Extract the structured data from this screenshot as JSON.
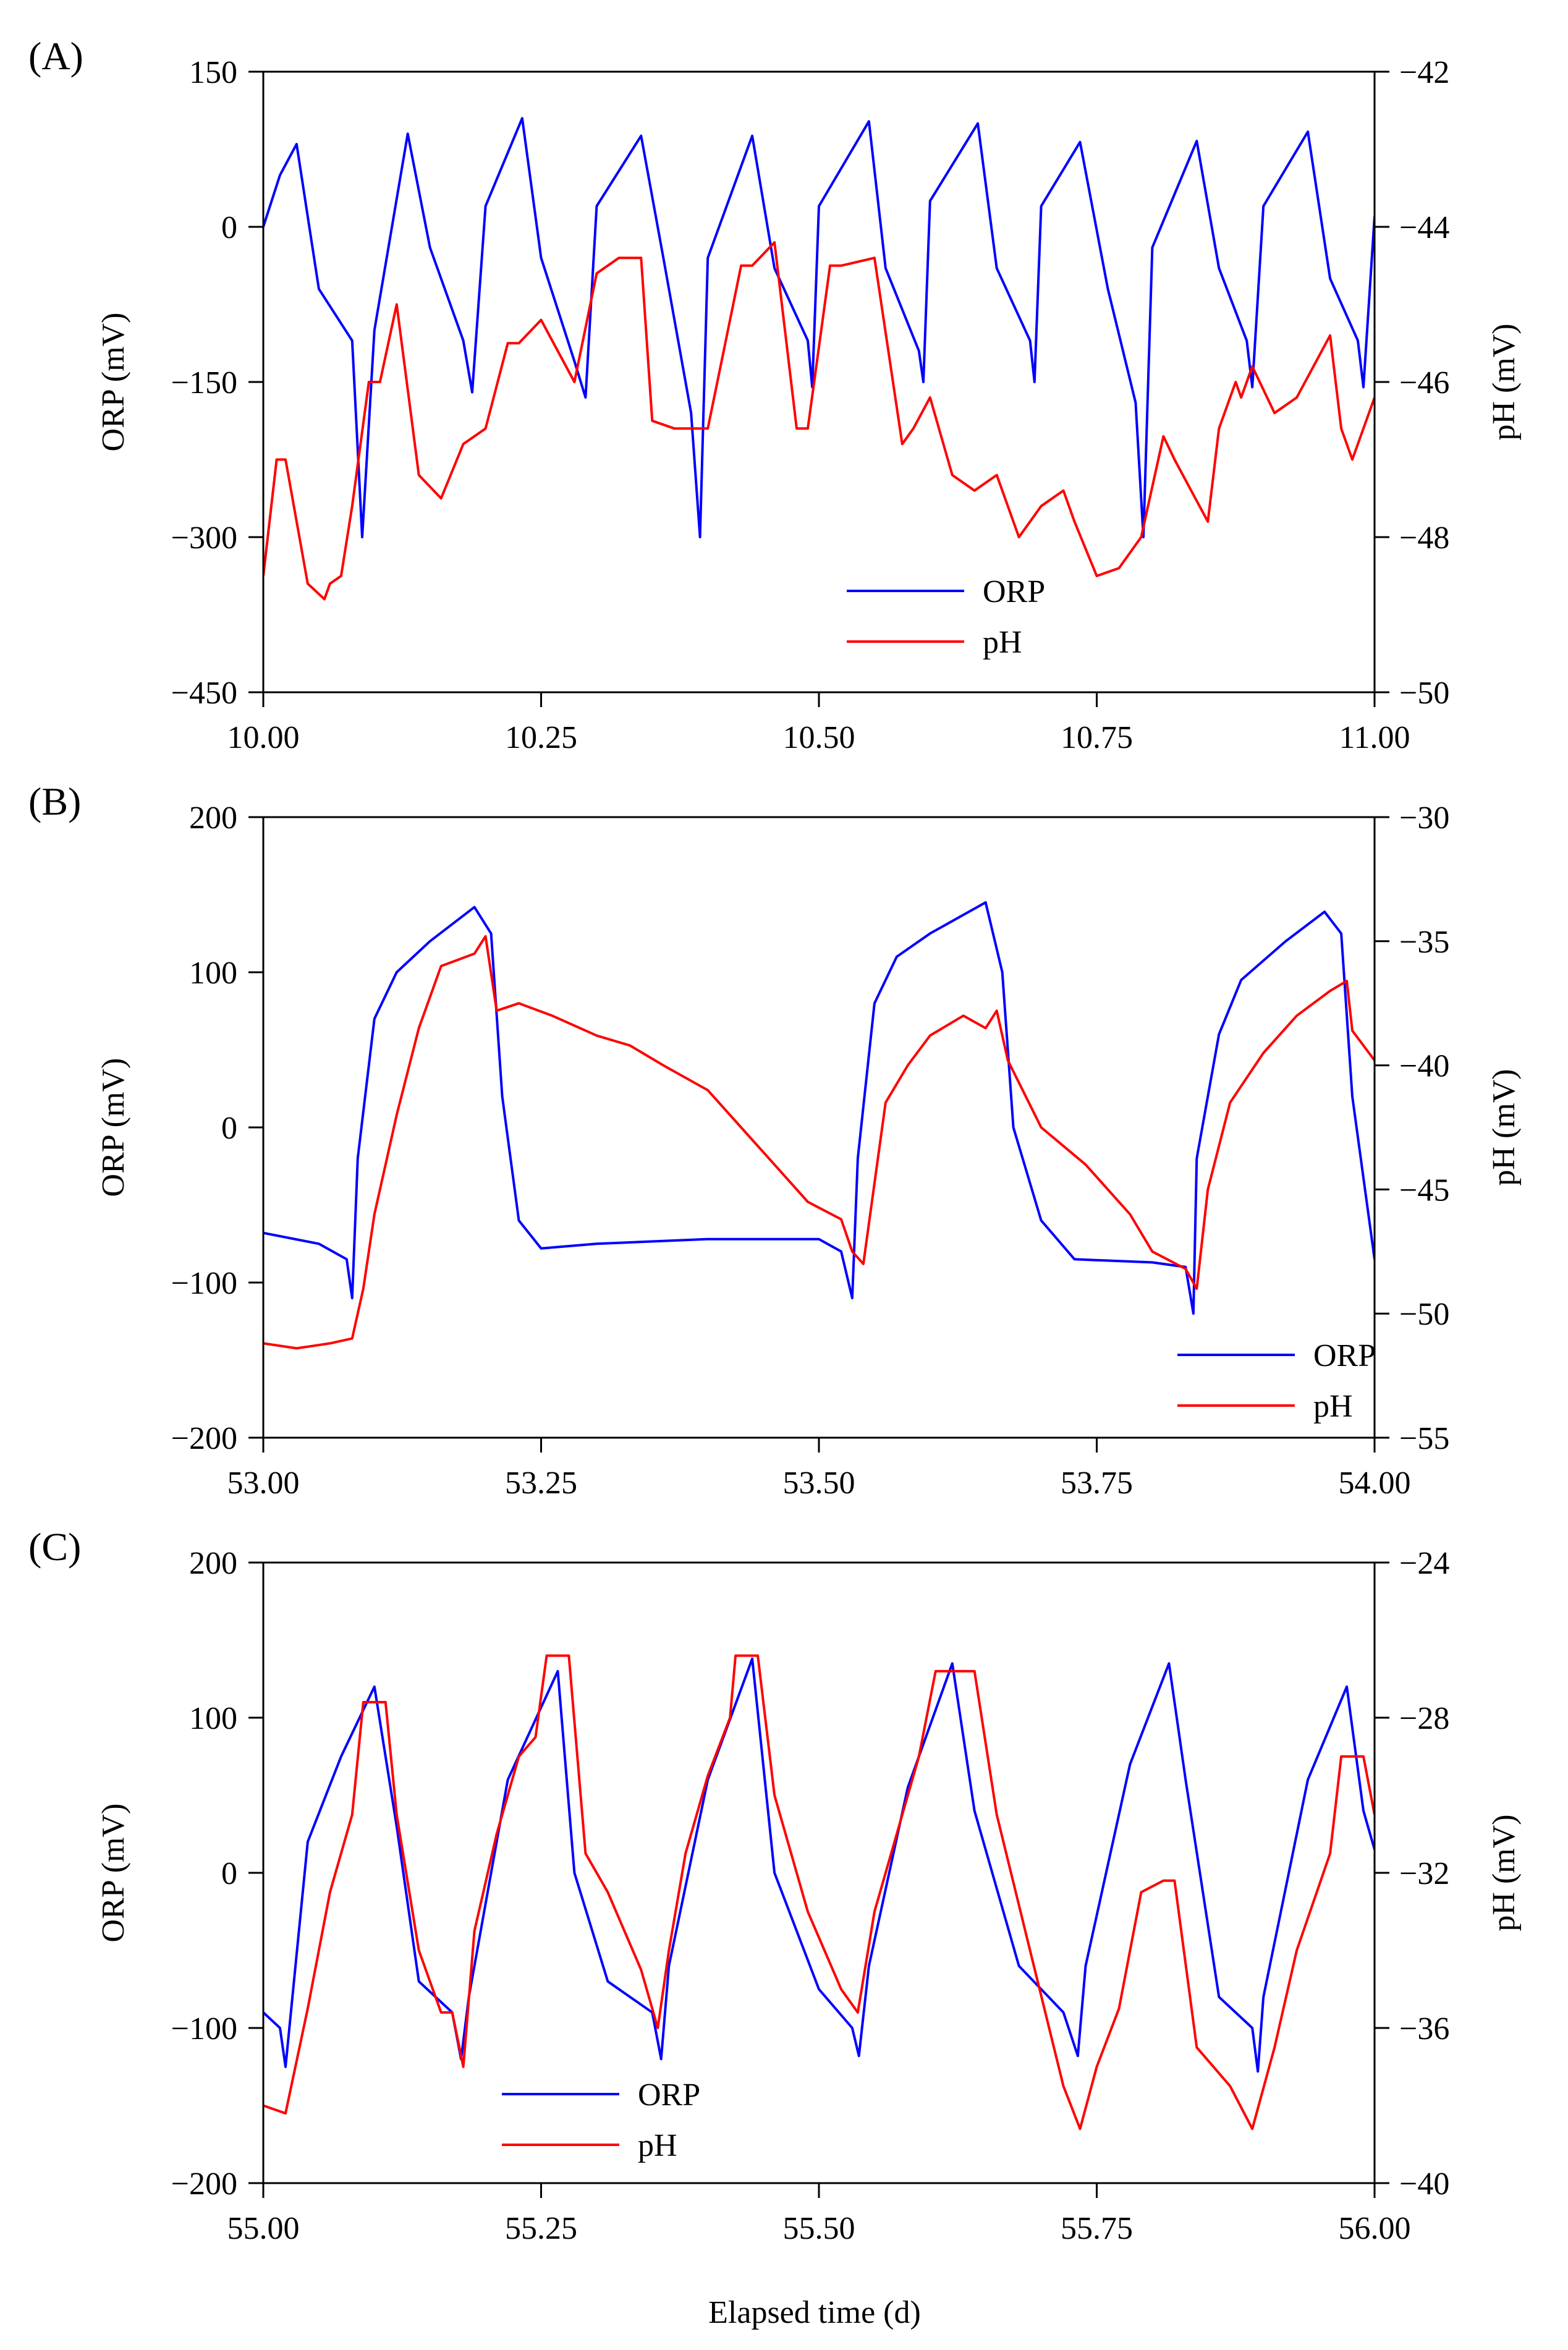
{
  "figure": {
    "x_axis_label": "Elapsed time (d)"
  },
  "legend_labels": {
    "orp": "ORP",
    "ph": "pH"
  },
  "colors": {
    "orp": "#0000ff",
    "ph": "#ff0000",
    "axes": "#000000"
  },
  "chart_data": [
    {
      "type": "line",
      "panel_label": "(A)",
      "xlabel": "",
      "ylabel_left": "ORP (mV)",
      "ylabel_right": "pH (mV)",
      "xlim": [
        10.0,
        11.0
      ],
      "ylim_left": [
        -450,
        150
      ],
      "ylim_right": [
        -50,
        -42
      ],
      "x_ticks": [
        "10.00",
        "10.25",
        "10.50",
        "10.75",
        "11.00"
      ],
      "y_ticks_left": [
        "150",
        "0",
        "−150",
        "−300",
        "−450"
      ],
      "y_ticks_right": [
        "−42",
        "−44",
        "−46",
        "−48",
        "−50"
      ],
      "legend_position": "bottom-center",
      "grid": false,
      "series": [
        {
          "name": "ORP",
          "axis": "left",
          "x": [
            10.0,
            10.015,
            10.03,
            10.05,
            10.08,
            10.089,
            10.1,
            10.13,
            10.15,
            10.18,
            10.188,
            10.2,
            10.233,
            10.25,
            10.28,
            10.29,
            10.3,
            10.34,
            10.36,
            10.385,
            10.393,
            10.4,
            10.44,
            10.46,
            10.49,
            10.494,
            10.5,
            10.545,
            10.56,
            10.59,
            10.594,
            10.6,
            10.643,
            10.66,
            10.69,
            10.694,
            10.7,
            10.735,
            10.76,
            10.785,
            10.792,
            10.8,
            10.84,
            10.86,
            10.885,
            10.89,
            10.9,
            10.94,
            10.96,
            10.985,
            10.99,
            11.0
          ],
          "y": [
            0,
            50,
            80,
            -60,
            -110,
            -300,
            -100,
            90,
            -20,
            -110,
            -160,
            20,
            105,
            -30,
            -130,
            -165,
            20,
            88,
            -30,
            -180,
            -300,
            -30,
            88,
            -40,
            -110,
            -155,
            20,
            102,
            -40,
            -120,
            -150,
            25,
            100,
            -40,
            -110,
            -150,
            20,
            82,
            -60,
            -170,
            -300,
            -20,
            83,
            -40,
            -110,
            -155,
            20,
            92,
            -50,
            -110,
            -155,
            10
          ]
        },
        {
          "name": "pH",
          "axis": "right",
          "x": [
            10.0,
            10.012,
            10.02,
            10.04,
            10.055,
            10.06,
            10.07,
            10.08,
            10.095,
            10.105,
            10.12,
            10.14,
            10.16,
            10.18,
            10.2,
            10.22,
            10.23,
            10.25,
            10.28,
            10.3,
            10.32,
            10.34,
            10.35,
            10.37,
            10.4,
            10.42,
            10.43,
            10.44,
            10.46,
            10.48,
            10.49,
            10.51,
            10.52,
            10.55,
            10.575,
            10.585,
            10.6,
            10.62,
            10.64,
            10.66,
            10.68,
            10.7,
            10.72,
            10.73,
            10.75,
            10.77,
            10.79,
            10.81,
            10.82,
            10.835,
            10.85,
            10.86,
            10.875,
            10.88,
            10.89,
            10.91,
            10.93,
            10.96,
            10.97,
            10.98,
            11.0
          ],
          "y": [
            -48.5,
            -47.0,
            -47.0,
            -48.6,
            -48.8,
            -48.6,
            -48.5,
            -47.6,
            -46.0,
            -46.0,
            -45.0,
            -47.2,
            -47.5,
            -46.8,
            -46.6,
            -45.5,
            -45.5,
            -45.2,
            -46.0,
            -44.6,
            -44.4,
            -44.4,
            -46.5,
            -46.6,
            -46.6,
            -45.2,
            -44.5,
            -44.5,
            -44.2,
            -46.6,
            -46.6,
            -44.5,
            -44.5,
            -44.4,
            -46.8,
            -46.6,
            -46.2,
            -47.2,
            -47.4,
            -47.2,
            -48.0,
            -47.6,
            -47.4,
            -47.8,
            -48.5,
            -48.4,
            -48.0,
            -46.7,
            -47.0,
            -47.4,
            -47.8,
            -46.6,
            -46.0,
            -46.2,
            -45.8,
            -46.4,
            -46.2,
            -45.4,
            -46.6,
            -47.0,
            -46.2
          ]
        }
      ]
    },
    {
      "type": "line",
      "panel_label": "(B)",
      "xlabel": "",
      "ylabel_left": "ORP (mV)",
      "ylabel_right": "pH (mV)",
      "xlim": [
        53.0,
        54.0
      ],
      "ylim_left": [
        -200,
        200
      ],
      "ylim_right": [
        -55,
        -30
      ],
      "x_ticks": [
        "53.00",
        "53.25",
        "53.50",
        "53.75",
        "54.00"
      ],
      "y_ticks_left": [
        "200",
        "100",
        "0",
        "−100",
        "−200"
      ],
      "y_ticks_right": [
        "−30",
        "−35",
        "−40",
        "−45",
        "−50",
        "−55"
      ],
      "legend_position": "bottom-right",
      "grid": false,
      "series": [
        {
          "name": "ORP",
          "axis": "left",
          "x": [
            53.0,
            53.05,
            53.075,
            53.08,
            53.085,
            53.1,
            53.12,
            53.15,
            53.19,
            53.205,
            53.215,
            53.23,
            53.25,
            53.3,
            53.4,
            53.5,
            53.52,
            53.53,
            53.535,
            53.55,
            53.57,
            53.6,
            53.65,
            53.665,
            53.675,
            53.7,
            53.73,
            53.8,
            53.83,
            53.837,
            53.84,
            53.86,
            53.88,
            53.92,
            53.955,
            53.97,
            53.98,
            54.0
          ],
          "y": [
            -68,
            -75,
            -85,
            -110,
            -20,
            70,
            100,
            120,
            142,
            125,
            20,
            -60,
            -78,
            -75,
            -72,
            -72,
            -80,
            -110,
            -20,
            80,
            110,
            125,
            145,
            100,
            0,
            -60,
            -85,
            -87,
            -90,
            -120,
            -20,
            60,
            95,
            120,
            139,
            125,
            20,
            -85
          ]
        },
        {
          "name": "pH",
          "axis": "right",
          "x": [
            53.0,
            53.03,
            53.06,
            53.08,
            53.09,
            53.1,
            53.12,
            53.14,
            53.16,
            53.19,
            53.2,
            53.21,
            53.23,
            53.26,
            53.3,
            53.33,
            53.36,
            53.4,
            53.43,
            53.46,
            53.49,
            53.52,
            53.53,
            53.54,
            53.56,
            53.58,
            53.6,
            53.63,
            53.65,
            53.66,
            53.67,
            53.7,
            53.74,
            53.78,
            53.8,
            53.83,
            53.84,
            53.85,
            53.87,
            53.9,
            53.93,
            53.96,
            53.975,
            53.98,
            54.0
          ],
          "y": [
            -51.2,
            -51.4,
            -51.2,
            -51.0,
            -49.0,
            -46.0,
            -42.0,
            -38.5,
            -36.0,
            -35.5,
            -34.8,
            -37.8,
            -37.5,
            -38.0,
            -38.8,
            -39.2,
            -40.0,
            -41.0,
            -42.5,
            -44.0,
            -45.5,
            -46.2,
            -47.5,
            -48.0,
            -41.5,
            -40.0,
            -38.8,
            -38.0,
            -38.5,
            -37.8,
            -39.8,
            -42.5,
            -44.0,
            -46.0,
            -47.5,
            -48.2,
            -49.0,
            -45.0,
            -41.5,
            -39.5,
            -38.0,
            -37.0,
            -36.6,
            -38.6,
            -39.8
          ]
        }
      ]
    },
    {
      "type": "line",
      "panel_label": "(C)",
      "xlabel": "Elapsed time (d)",
      "ylabel_left": "ORP (mV)",
      "ylabel_right": "pH (mV)",
      "xlim": [
        55.0,
        56.0
      ],
      "ylim_left": [
        -200,
        200
      ],
      "ylim_right": [
        -40,
        -24
      ],
      "x_ticks": [
        "55.00",
        "55.25",
        "55.50",
        "55.75",
        "56.00"
      ],
      "y_ticks_left": [
        "200",
        "100",
        "0",
        "−100",
        "−200"
      ],
      "y_ticks_right": [
        "−24",
        "−28",
        "−32",
        "−36",
        "−40"
      ],
      "legend_position": "bottom-left",
      "grid": false,
      "series": [
        {
          "name": "ORP",
          "axis": "left",
          "x": [
            55.0,
            55.015,
            55.02,
            55.04,
            55.07,
            55.1,
            55.12,
            55.14,
            55.17,
            55.178,
            55.185,
            55.22,
            55.265,
            55.28,
            55.31,
            55.35,
            55.358,
            55.365,
            55.4,
            55.44,
            55.46,
            55.5,
            55.53,
            55.536,
            55.545,
            55.58,
            55.62,
            55.64,
            55.68,
            55.72,
            55.733,
            55.74,
            55.78,
            55.815,
            55.83,
            55.86,
            55.89,
            55.895,
            55.9,
            55.94,
            55.975,
            55.99,
            56.0
          ],
          "y": [
            -90,
            -100,
            -125,
            20,
            75,
            120,
            30,
            -70,
            -90,
            -120,
            -80,
            60,
            130,
            0,
            -70,
            -90,
            -120,
            -60,
            60,
            138,
            0,
            -75,
            -100,
            -118,
            -60,
            55,
            135,
            40,
            -60,
            -90,
            -118,
            -60,
            70,
            135,
            60,
            -80,
            -100,
            -128,
            -80,
            60,
            120,
            40,
            15
          ]
        },
        {
          "name": "pH",
          "axis": "right",
          "x": [
            55.0,
            55.02,
            55.04,
            55.06,
            55.08,
            55.09,
            55.11,
            55.12,
            55.14,
            55.16,
            55.17,
            55.18,
            55.19,
            55.21,
            55.23,
            55.245,
            55.255,
            55.275,
            55.29,
            55.31,
            55.34,
            55.355,
            55.365,
            55.38,
            55.4,
            55.42,
            55.425,
            55.445,
            55.46,
            55.49,
            55.52,
            55.535,
            55.55,
            55.57,
            55.59,
            55.605,
            55.64,
            55.66,
            55.69,
            55.72,
            55.735,
            55.75,
            55.77,
            55.79,
            55.81,
            55.82,
            55.84,
            55.87,
            55.89,
            55.91,
            55.93,
            55.96,
            55.97,
            55.99,
            56.0
          ],
          "y": [
            -38.0,
            -38.2,
            -35.5,
            -32.5,
            -30.5,
            -27.6,
            -27.6,
            -30.5,
            -34.0,
            -35.6,
            -35.6,
            -37.0,
            -33.5,
            -31.0,
            -29.0,
            -28.5,
            -26.4,
            -26.4,
            -31.5,
            -32.5,
            -34.5,
            -36.0,
            -34.0,
            -31.5,
            -29.5,
            -28.0,
            -26.4,
            -26.4,
            -30.0,
            -33.0,
            -35.0,
            -35.6,
            -33.0,
            -31.0,
            -29.0,
            -26.8,
            -26.8,
            -30.5,
            -34.0,
            -37.5,
            -38.6,
            -37.0,
            -35.5,
            -32.5,
            -32.2,
            -32.2,
            -36.5,
            -37.5,
            -38.6,
            -36.5,
            -34.0,
            -31.5,
            -29.0,
            -29.0,
            -30.5
          ]
        }
      ]
    }
  ]
}
